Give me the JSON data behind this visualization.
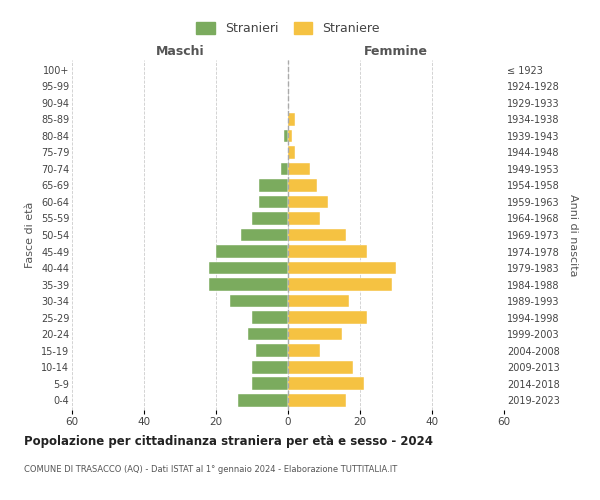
{
  "age_groups": [
    "0-4",
    "5-9",
    "10-14",
    "15-19",
    "20-24",
    "25-29",
    "30-34",
    "35-39",
    "40-44",
    "45-49",
    "50-54",
    "55-59",
    "60-64",
    "65-69",
    "70-74",
    "75-79",
    "80-84",
    "85-89",
    "90-94",
    "95-99",
    "100+"
  ],
  "birth_years": [
    "2019-2023",
    "2014-2018",
    "2009-2013",
    "2004-2008",
    "1999-2003",
    "1994-1998",
    "1989-1993",
    "1984-1988",
    "1979-1983",
    "1974-1978",
    "1969-1973",
    "1964-1968",
    "1959-1963",
    "1954-1958",
    "1949-1953",
    "1944-1948",
    "1939-1943",
    "1934-1938",
    "1929-1933",
    "1924-1928",
    "≤ 1923"
  ],
  "maschi": [
    14,
    10,
    10,
    9,
    11,
    10,
    16,
    22,
    22,
    20,
    13,
    10,
    8,
    8,
    2,
    0,
    1,
    0,
    0,
    0,
    0
  ],
  "femmine": [
    16,
    21,
    18,
    9,
    15,
    22,
    17,
    29,
    30,
    22,
    16,
    9,
    11,
    8,
    6,
    2,
    1,
    2,
    0,
    0,
    0
  ],
  "color_maschi": "#7bab5e",
  "color_femmine": "#f5c242",
  "title_main": "Popolazione per cittadinanza straniera per età e sesso - 2024",
  "subtitle": "COMUNE DI TRASACCO (AQ) - Dati ISTAT al 1° gennaio 2024 - Elaborazione TUTTITALIA.IT",
  "legend_maschi": "Stranieri",
  "legend_femmine": "Straniere",
  "xlabel_left": "Maschi",
  "xlabel_right": "Femmine",
  "ylabel_left": "Fasce di età",
  "ylabel_right": "Anni di nascita",
  "xlim": 60,
  "bg_color": "#ffffff",
  "grid_color": "#cccccc"
}
